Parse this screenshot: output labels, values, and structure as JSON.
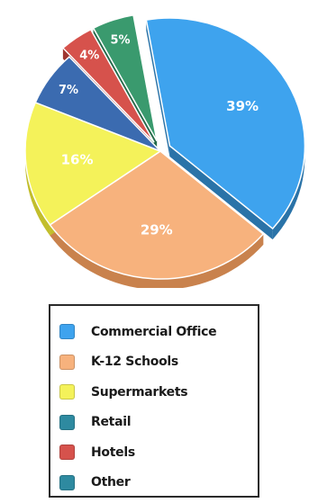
{
  "chart_data": {
    "type": "pie",
    "title": "",
    "slices": [
      {
        "label": "Commercial Office",
        "value": 39,
        "display": "39%",
        "color": "#3ea3ee",
        "side": "#2a73a8",
        "exploded": true
      },
      {
        "label": "K-12 Schools",
        "value": 29,
        "display": "29%",
        "color": "#f7b27d",
        "side": "#c9824d",
        "exploded": false
      },
      {
        "label": "Supermarkets",
        "value": 16,
        "display": "16%",
        "color": "#f4f25a",
        "side": "#c2be2c",
        "exploded": false
      },
      {
        "label": "Retail",
        "value": 7,
        "display": "7%",
        "color": "#3b6bb0",
        "side": "#284d84",
        "exploded": false
      },
      {
        "label": "Hotels",
        "value": 4,
        "display": "4%",
        "color": "#d6524c",
        "side": "#9f3631",
        "exploded": true
      },
      {
        "label": "Other",
        "value": 5,
        "display": "5%",
        "color": "#3a9a6e",
        "side": "#256b4a",
        "exploded": true
      }
    ],
    "legend": {
      "position": "bottom",
      "items": [
        {
          "label": "Commercial Office",
          "color": "#3ea3ee"
        },
        {
          "label": "K-12 Schools",
          "color": "#f7b27d"
        },
        {
          "label": "Supermarkets",
          "color": "#f4f25a"
        },
        {
          "label": "Retail",
          "color": "#2e8aa0"
        },
        {
          "label": "Hotels",
          "color": "#d6524c"
        },
        {
          "label": "Other",
          "color": "#2e8aa0"
        }
      ]
    }
  }
}
